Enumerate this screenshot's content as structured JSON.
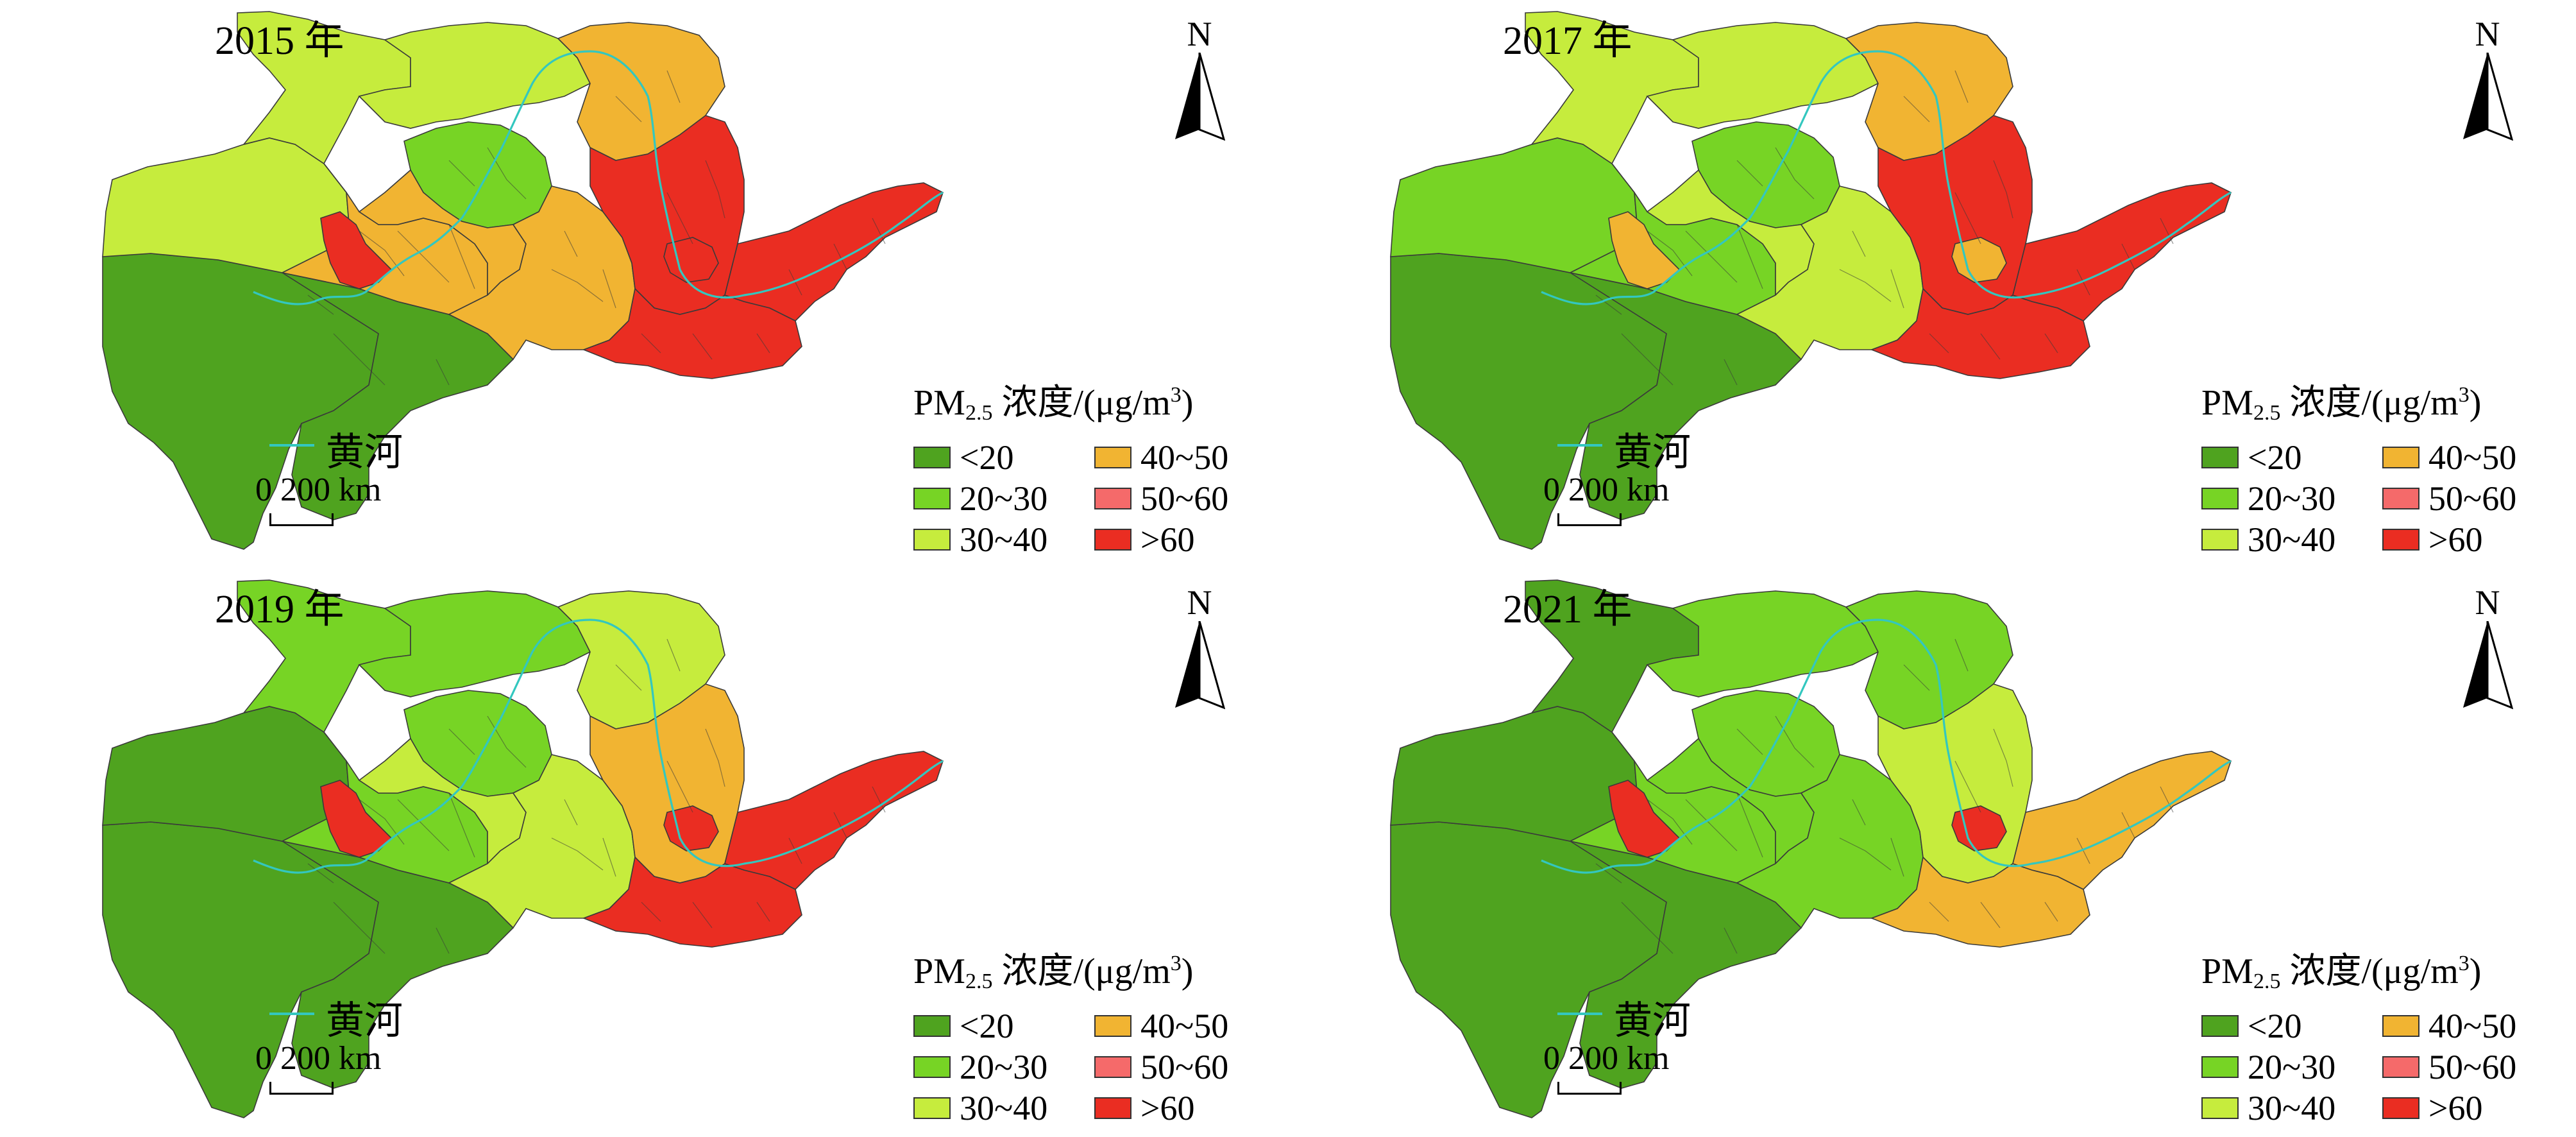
{
  "colors": {
    "c1": "#4fa31f",
    "c2": "#77d425",
    "c3": "#c6ec3d",
    "c4": "#f1b432",
    "c5": "#f56a6a",
    "c6": "#ea2d22",
    "river": "#33c7bf",
    "boundary": "#3a3a3a"
  },
  "north_label": "N",
  "river_legend": {
    "label": "黄河",
    "icon": "river-line-icon"
  },
  "scalebar": {
    "text": "0  200 km"
  },
  "legend": {
    "title_main": "PM",
    "title_sub": "2.5",
    "title_rest": " 浓度/(μg/m",
    "title_sup": "3",
    "title_end": ")",
    "classes": [
      {
        "label": "<20",
        "color_key": "c1"
      },
      {
        "label": "20~30",
        "color_key": "c2"
      },
      {
        "label": "30~40",
        "color_key": "c3"
      },
      {
        "label": "40~50",
        "color_key": "c4"
      },
      {
        "label": "50~60",
        "color_key": "c5"
      },
      {
        "label": ">60",
        "color_key": "c6"
      }
    ]
  },
  "panels": [
    {
      "year_title": "2015 年",
      "regions": {
        "northwest": "c3",
        "northcenter": "c3",
        "ordos": "c2",
        "northeast": "c4",
        "qinghai": "c3",
        "tibet": "c1",
        "south": "c1",
        "gansu": "c4",
        "center": "c4",
        "shaanxi": "c4",
        "shanxi": "c6",
        "henan": "c6",
        "shandong": "c6",
        "hotspot": "c6"
      }
    },
    {
      "year_title": "2017 年",
      "regions": {
        "northwest": "c3",
        "northcenter": "c3",
        "ordos": "c2",
        "northeast": "c4",
        "qinghai": "c2",
        "tibet": "c1",
        "south": "c1",
        "gansu": "c2",
        "center": "c3",
        "shaanxi": "c3",
        "shanxi": "c6",
        "henan": "c6",
        "shandong": "c6",
        "hotspot": "c4"
      }
    },
    {
      "year_title": "2019 年",
      "regions": {
        "northwest": "c2",
        "northcenter": "c2",
        "ordos": "c2",
        "northeast": "c3",
        "qinghai": "c1",
        "tibet": "c1",
        "south": "c1",
        "gansu": "c2",
        "center": "c3",
        "shaanxi": "c3",
        "shanxi": "c4",
        "henan": "c6",
        "shandong": "c6",
        "hotspot": "c6"
      }
    },
    {
      "year_title": "2021 年",
      "regions": {
        "northwest": "c1",
        "northcenter": "c2",
        "ordos": "c2",
        "northeast": "c2",
        "qinghai": "c1",
        "tibet": "c1",
        "south": "c1",
        "gansu": "c2",
        "center": "c2",
        "shaanxi": "c2",
        "shanxi": "c3",
        "henan": "c4",
        "shandong": "c4",
        "hotspot": "c6"
      }
    }
  ]
}
